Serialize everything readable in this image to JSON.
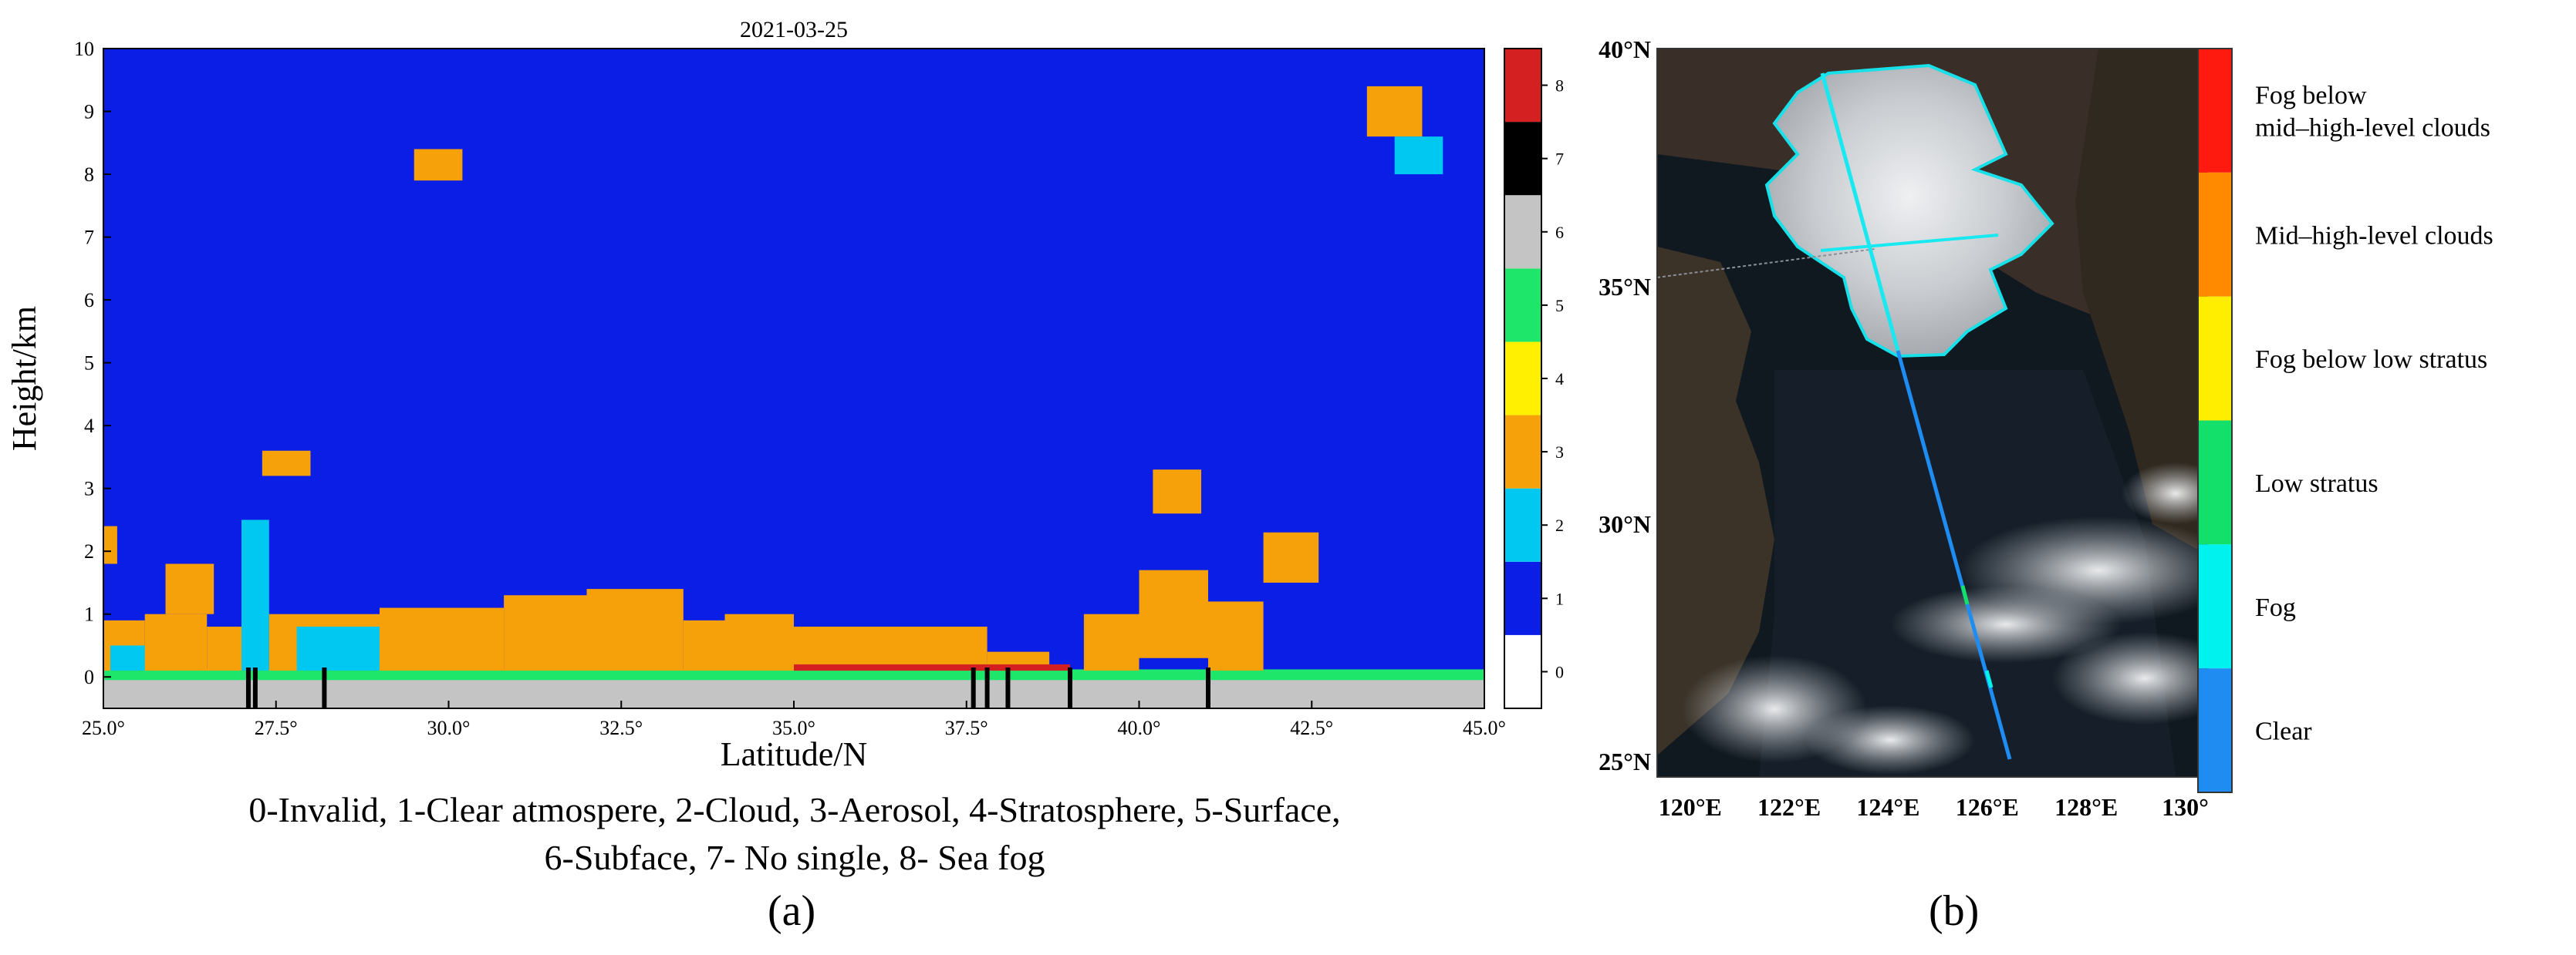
{
  "panel_a": {
    "title": "2021-03-25",
    "xlabel": "Latitude/N",
    "ylabel": "Height/km",
    "x_ticks": [
      "25.0°",
      "27.5°",
      "30.0°",
      "32.5°",
      "35.0°",
      "37.5°",
      "40.0°",
      "42.5°",
      "45.0°"
    ],
    "y_ticks": [
      "0",
      "1",
      "2",
      "3",
      "4",
      "5",
      "6",
      "7",
      "8",
      "9",
      "10"
    ],
    "colorbar": {
      "ticks": [
        "0",
        "1",
        "2",
        "3",
        "4",
        "5",
        "6",
        "7",
        "8"
      ],
      "colors": [
        "#ffffff",
        "#0a1ee6",
        "#00c8f0",
        "#f7a10a",
        "#ffef00",
        "#1ee66a",
        "#c4c4c4",
        "#000000",
        "#d42020"
      ]
    },
    "legend_lines": [
      "0-Invalid, 1-Clear atmospere, 2-Cloud, 3-Aerosol, 4-Stratosphere,  5-Surface,",
      "6-Subface, 7- No single, 8- Sea fog"
    ],
    "label": "(a)"
  },
  "panel_b": {
    "lat_ticks": [
      "40°N",
      "35°N",
      "30°N",
      "25°N"
    ],
    "lon_ticks": [
      "120°E",
      "122°E",
      "124°E",
      "126°E",
      "128°E",
      "130°"
    ],
    "colorbar_labels": [
      "Fog below\nmid–high-level clouds",
      "Mid–high-level clouds",
      "Fog below low stratus",
      "Low stratus",
      "Fog",
      "Clear"
    ],
    "colorbar_colors": [
      "#ff1a10",
      "#ff8a00",
      "#ffee00",
      "#12e06a",
      "#00f2ee",
      "#1e8cf0"
    ],
    "label": "(b)"
  },
  "chart_data": [
    {
      "type": "heatmap",
      "title": "2021-03-25",
      "xlabel": "Latitude/N",
      "ylabel": "Height/km",
      "xlim": [
        25.0,
        45.0
      ],
      "ylim": [
        -0.5,
        10
      ],
      "grid": false,
      "background_class": 1,
      "class_regions": [
        {
          "class": 6,
          "x": [
            25.0,
            45.0
          ],
          "y": [
            -0.5,
            0.0
          ]
        },
        {
          "class": 5,
          "x": [
            25.0,
            45.0
          ],
          "y": [
            -0.05,
            0.12
          ]
        },
        {
          "class": 3,
          "x": [
            25.0,
            25.2
          ],
          "y": [
            1.8,
            2.4
          ]
        },
        {
          "class": 3,
          "x": [
            25.0,
            25.6
          ],
          "y": [
            0.1,
            0.9
          ]
        },
        {
          "class": 2,
          "x": [
            25.1,
            25.8
          ],
          "y": [
            0.1,
            0.5
          ]
        },
        {
          "class": 3,
          "x": [
            25.6,
            26.5
          ],
          "y": [
            0.1,
            1.0
          ]
        },
        {
          "class": 3,
          "x": [
            25.9,
            26.6
          ],
          "y": [
            1.0,
            1.8
          ]
        },
        {
          "class": 3,
          "x": [
            26.5,
            27.2
          ],
          "y": [
            0.1,
            0.8
          ]
        },
        {
          "class": 2,
          "x": [
            27.0,
            27.4
          ],
          "y": [
            0.1,
            2.5
          ]
        },
        {
          "class": 3,
          "x": [
            27.4,
            29.0
          ],
          "y": [
            0.1,
            1.0
          ]
        },
        {
          "class": 2,
          "x": [
            27.8,
            29.0
          ],
          "y": [
            0.1,
            0.8
          ]
        },
        {
          "class": 3,
          "x": [
            29.0,
            30.8
          ],
          "y": [
            0.1,
            1.1
          ]
        },
        {
          "class": 3,
          "x": [
            30.8,
            32.0
          ],
          "y": [
            0.1,
            1.3
          ]
        },
        {
          "class": 3,
          "x": [
            32.0,
            33.4
          ],
          "y": [
            0.1,
            1.4
          ]
        },
        {
          "class": 3,
          "x": [
            33.4,
            34.0
          ],
          "y": [
            0.1,
            0.9
          ]
        },
        {
          "class": 3,
          "x": [
            34.0,
            35.0
          ],
          "y": [
            0.1,
            1.0
          ]
        },
        {
          "class": 3,
          "x": [
            35.0,
            37.8
          ],
          "y": [
            0.1,
            0.8
          ]
        },
        {
          "class": 3,
          "x": [
            37.8,
            38.7
          ],
          "y": [
            0.1,
            0.4
          ]
        },
        {
          "class": 3,
          "x": [
            39.2,
            40.0
          ],
          "y": [
            0.1,
            1.0
          ]
        },
        {
          "class": 3,
          "x": [
            40.0,
            41.0
          ],
          "y": [
            0.3,
            1.7
          ]
        },
        {
          "class": 3,
          "x": [
            41.0,
            41.8
          ],
          "y": [
            0.1,
            1.2
          ]
        },
        {
          "class": 3,
          "x": [
            41.8,
            42.6
          ],
          "y": [
            1.5,
            2.3
          ]
        },
        {
          "class": 3,
          "x": [
            27.3,
            28.0
          ],
          "y": [
            3.2,
            3.6
          ]
        },
        {
          "class": 3,
          "x": [
            29.5,
            30.2
          ],
          "y": [
            7.9,
            8.4
          ]
        },
        {
          "class": 3,
          "x": [
            40.2,
            40.9
          ],
          "y": [
            2.6,
            3.3
          ]
        },
        {
          "class": 3,
          "x": [
            43.3,
            44.1
          ],
          "y": [
            8.6,
            9.4
          ]
        },
        {
          "class": 2,
          "x": [
            43.7,
            44.4
          ],
          "y": [
            8.0,
            8.6
          ]
        },
        {
          "class": 8,
          "x": [
            35.0,
            39.0
          ],
          "y": [
            0.1,
            0.2
          ]
        }
      ],
      "no_signal_columns": [
        27.1,
        27.2,
        28.2,
        37.6,
        37.8,
        38.1,
        39.0,
        41.0
      ]
    },
    {
      "type": "map",
      "lat_range": [
        "25°N",
        "40°N"
      ],
      "lon_range": [
        "120°E",
        "130°"
      ],
      "legend": [
        "Fog below mid–high-level clouds",
        "Mid–high-level clouds",
        "Fog below low stratus",
        "Low stratus",
        "Fog",
        "Clear"
      ]
    }
  ]
}
